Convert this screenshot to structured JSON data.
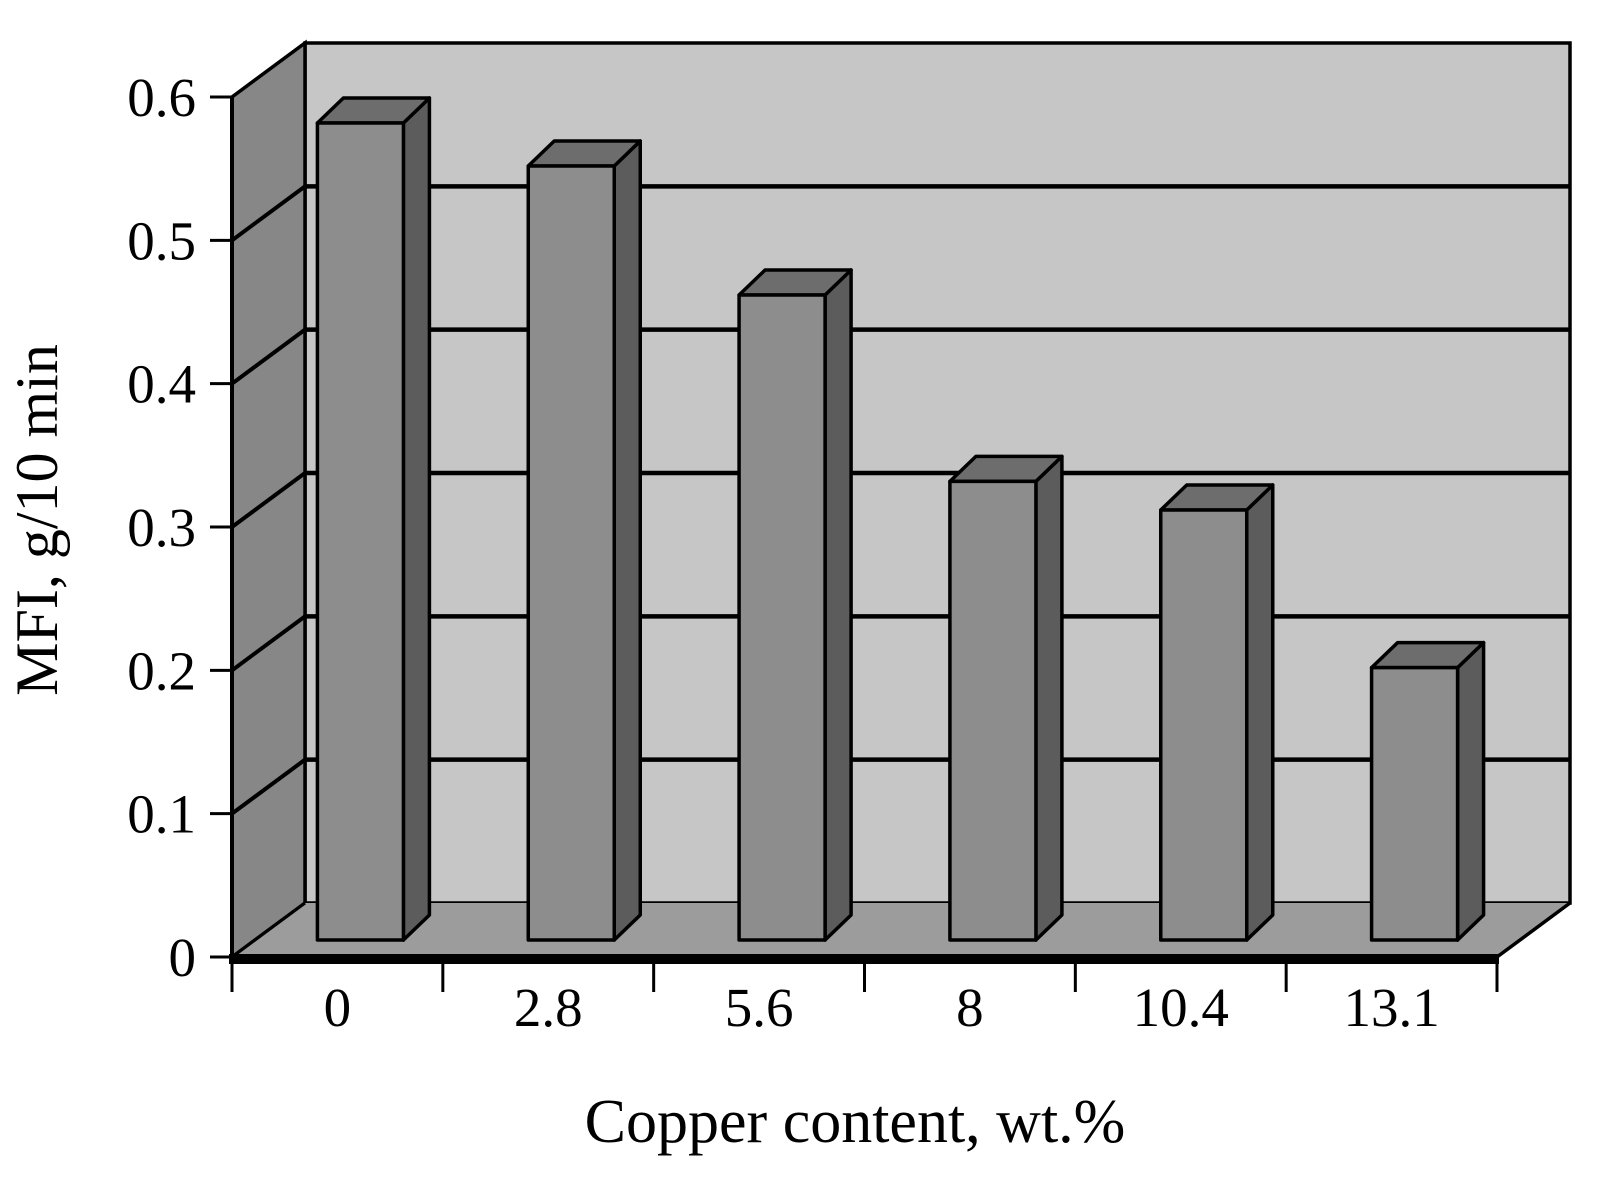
{
  "chart_data": {
    "type": "bar",
    "projection": "3d-column",
    "title": "",
    "xlabel": "Copper content, wt.%",
    "ylabel": "MFI, g/10 min",
    "categories": [
      "0",
      "2.8",
      "5.6",
      "8",
      "10.4",
      "13.1"
    ],
    "series": [
      {
        "name": "MFI",
        "values": [
          0.57,
          0.54,
          0.45,
          0.32,
          0.3,
          0.19
        ]
      }
    ],
    "ylim": [
      0,
      0.6
    ],
    "ytick_step": 0.1,
    "ytick_labels": [
      "0",
      "0.1",
      "0.2",
      "0.3",
      "0.4",
      "0.5",
      "0.6"
    ],
    "grid": true,
    "legend": false,
    "colors": {
      "background": "#ffffff",
      "back_wall": "#c6c6c6",
      "side_wall": "#878787",
      "floor": "#9c9c9c",
      "bar_front": "#8d8d8d",
      "bar_top": "#6d6d6d",
      "bar_side": "#5c5c5c",
      "line": "#000000",
      "text": "#000000"
    }
  }
}
